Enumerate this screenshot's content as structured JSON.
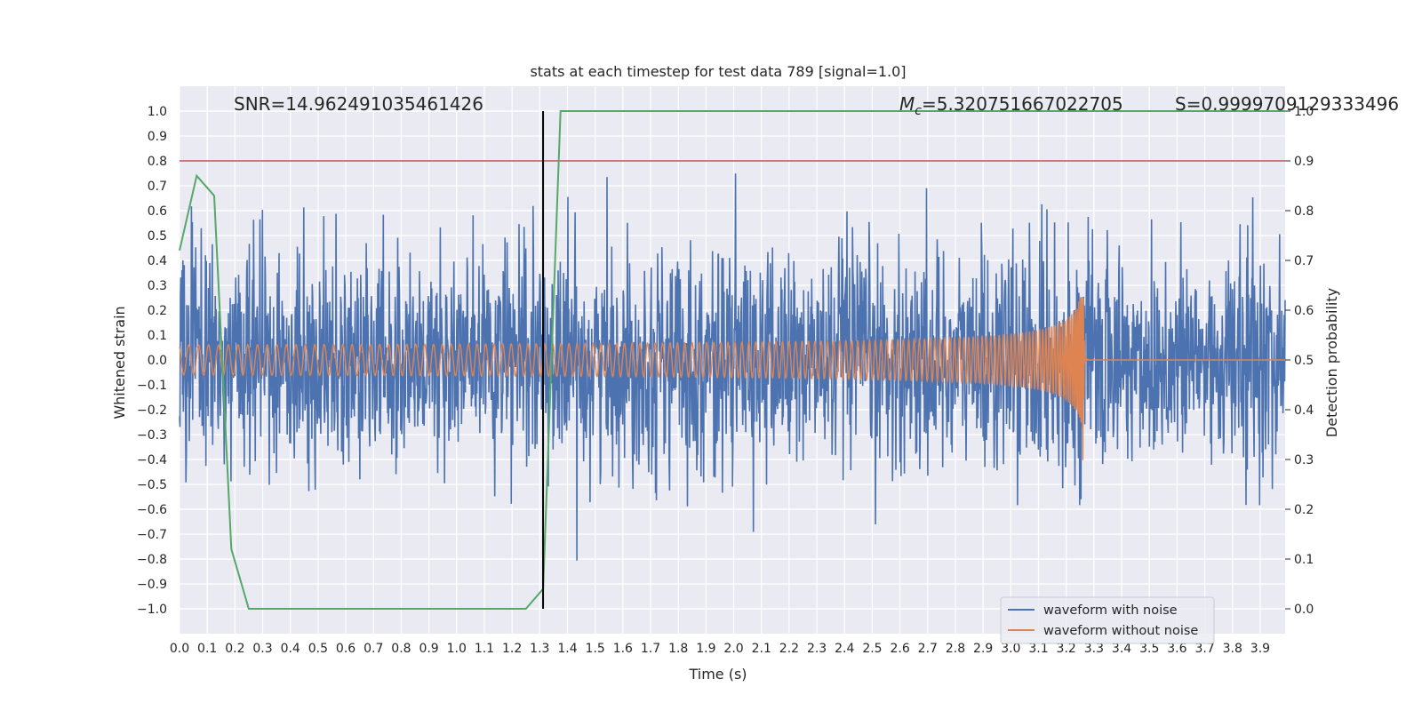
{
  "chart_data": {
    "type": "line",
    "title": "stats at each timestep for test data 789 [signal=1.0]",
    "xlabel": "Time (s)",
    "ylabel": "Whitened strain",
    "y2label": "Detection probability",
    "xlim": [
      0.0,
      3.99
    ],
    "ylim": [
      -1.1,
      1.1
    ],
    "y2lim": [
      -0.05,
      1.05
    ],
    "xticks": [
      0.0,
      0.1,
      0.2,
      0.3,
      0.4,
      0.5,
      0.6,
      0.7,
      0.8,
      0.9,
      1.0,
      1.1,
      1.2,
      1.3,
      1.4,
      1.5,
      1.6,
      1.7,
      1.8,
      1.9,
      2.0,
      2.1,
      2.2,
      2.3,
      2.4,
      2.5,
      2.6,
      2.7,
      2.8,
      2.9,
      3.0,
      3.1,
      3.2,
      3.3,
      3.4,
      3.5,
      3.6,
      3.7,
      3.8,
      3.9
    ],
    "xtick_labels": [
      "0.0",
      "0.1",
      "0.2",
      "0.3",
      "0.4",
      "0.5",
      "0.6",
      "0.7",
      "0.8",
      "0.9",
      "1.0",
      "1.1",
      "1.2",
      "1.3",
      "1.4",
      "1.5",
      "1.6",
      "1.7",
      "1.8",
      "1.9",
      "2.0",
      "2.1",
      "2.2",
      "2.3",
      "2.4",
      "2.5",
      "2.6",
      "2.7",
      "2.8",
      "2.9",
      "3.0",
      "3.1",
      "3.2",
      "3.3",
      "3.4",
      "3.5",
      "3.6",
      "3.7",
      "3.8",
      "3.9"
    ],
    "yticks": [
      1.0,
      0.9,
      0.8,
      0.7,
      0.6,
      0.5,
      0.4,
      0.3,
      0.2,
      0.1,
      0.0,
      -0.1,
      -0.2,
      -0.3,
      -0.4,
      -0.5,
      -0.6,
      -0.7,
      -0.8,
      -0.9,
      -1.0
    ],
    "ytick_labels": [
      "1.0",
      "0.9",
      "0.8",
      "0.7",
      "0.6",
      "0.5",
      "0.4",
      "0.3",
      "0.2",
      "0.1",
      "0.0",
      "−0.1",
      "−0.2",
      "−0.3",
      "−0.4",
      "−0.5",
      "−0.6",
      "−0.7",
      "−0.8",
      "−0.9",
      "−1.0"
    ],
    "y2ticks": [
      1.0,
      0.9,
      0.8,
      0.7,
      0.6,
      0.5,
      0.4,
      0.3,
      0.2,
      0.1,
      0.0
    ],
    "y2tick_labels": [
      "1.0",
      "0.9",
      "0.8",
      "0.7",
      "0.6",
      "0.5",
      "0.4",
      "0.3",
      "0.2",
      "0.1",
      "0.0"
    ],
    "annotations": {
      "snr": "SNR=14.962491035461426",
      "mc_symbol": "M",
      "mc_sub": "c",
      "mc_value": "=5.320751667022705",
      "s": "S=0.9999709129333496"
    },
    "series": [
      {
        "name": "waveform with noise",
        "color": "#4c72b0",
        "kind": "noise",
        "sigma": 0.22,
        "duration": 3.99
      },
      {
        "name": "waveform without noise",
        "color": "#dd8452",
        "kind": "chirp",
        "merger_time": 3.26,
        "amp_start": 0.045,
        "amp_peak": 0.3,
        "min_amp": -0.43
      },
      {
        "name": "detection probability",
        "color": "#55a868",
        "axis": "right",
        "x": [
          0.0,
          0.062,
          0.125,
          0.187,
          0.25,
          1.25,
          1.312,
          1.375,
          3.99
        ],
        "y": [
          0.72,
          0.87,
          0.83,
          0.12,
          0.0,
          0.0,
          0.04,
          1.0,
          1.0
        ]
      }
    ],
    "threshold_line": {
      "value": 0.9,
      "axis": "right",
      "color": "#c44e52"
    },
    "vertical_line": {
      "x": 1.312,
      "color": "#000000"
    },
    "legend": {
      "placement": "lower right",
      "entries": [
        "waveform with noise",
        "waveform without noise"
      ]
    }
  }
}
